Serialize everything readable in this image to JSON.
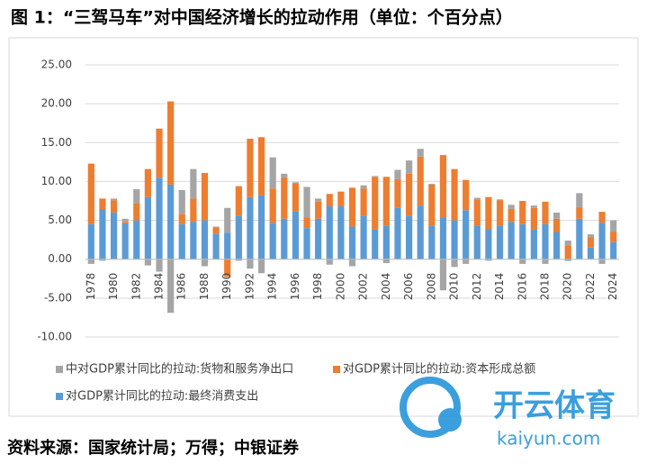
{
  "chart_data": {
    "type": "stacked_bar",
    "title": "图 1：“三驾马车”对中国经济增长的拉动作用（单位：个百分点）",
    "source": "资料来源：国家统计局；万得；中银证券",
    "watermark": [
      "开云体育",
      "kaiyun.com"
    ],
    "categories": [
      "1978",
      null,
      "1980",
      null,
      "1982",
      null,
      "1984",
      null,
      "1986",
      null,
      "1988",
      null,
      "1990",
      null,
      "1992",
      null,
      "1994",
      null,
      "1996",
      null,
      "1998",
      null,
      "2000",
      null,
      "2002",
      null,
      "2004",
      null,
      "2006",
      null,
      "2008",
      null,
      "2010",
      null,
      "2012",
      null,
      "2014",
      null,
      "2016",
      null,
      "2018",
      null,
      "2020",
      null,
      "2022",
      null,
      "2024"
    ],
    "series": [
      {
        "name": "中对GDP累计同比的拉动:货物和服务净出口",
        "color": "#a5a5a5",
        "values": [
          -0.6,
          -0.2,
          0.2,
          0.4,
          1.8,
          -0.8,
          -1.6,
          -6.9,
          3.1,
          3.8,
          -0.9,
          0.1,
          3.2,
          -0.2,
          -1.2,
          -1.8,
          4.0,
          0.5,
          0.2,
          3.9,
          0.4,
          -0.7,
          0.0,
          -0.9,
          0.4,
          0.1,
          -0.5,
          1.2,
          1.7,
          1.0,
          0.1,
          -4.0,
          -1.0,
          -0.6,
          0.2,
          -0.2,
          0.1,
          0.5,
          -0.6,
          0.3,
          -0.6,
          0.8,
          0.6,
          1.8,
          0.4,
          -0.6,
          1.5
        ]
      },
      {
        "name": "对GDP累计同比的拉动:资本形成总额",
        "color": "#ed7d31",
        "values": [
          7.8,
          1.4,
          1.6,
          0.2,
          2.2,
          3.6,
          6.3,
          10.7,
          1.3,
          3.0,
          6.1,
          0.8,
          -2.3,
          3.8,
          7.5,
          7.5,
          4.4,
          5.3,
          3.5,
          1.4,
          2.2,
          1.6,
          1.9,
          5.0,
          3.5,
          6.8,
          6.3,
          3.7,
          5.4,
          6.3,
          5.3,
          8.1,
          6.6,
          3.9,
          3.4,
          4.1,
          3.3,
          1.7,
          3.0,
          2.8,
          2.9,
          1.7,
          1.8,
          1.5,
          1.3,
          1.4,
          1.3
        ]
      },
      {
        "name": "对GDP累计同比的拉动:最终消费支出",
        "color": "#5b9bd5",
        "values": [
          4.5,
          6.4,
          6.0,
          4.6,
          5.0,
          8.0,
          10.5,
          9.6,
          4.5,
          4.8,
          5.0,
          3.3,
          3.4,
          5.6,
          8.0,
          8.2,
          4.7,
          5.2,
          6.2,
          4.0,
          5.2,
          6.8,
          6.8,
          4.2,
          5.6,
          3.8,
          4.3,
          6.6,
          5.6,
          6.9,
          4.3,
          5.3,
          5.0,
          6.3,
          4.3,
          3.9,
          4.3,
          4.8,
          4.5,
          3.8,
          4.5,
          3.5,
          -0.2,
          5.2,
          1.5,
          4.7,
          2.2
        ]
      }
    ],
    "ylim": [
      -10,
      25
    ],
    "yticks": [
      {
        "value": -10,
        "label": "-10.00"
      },
      {
        "value": -5,
        "label": "-5.00"
      },
      {
        "value": 0,
        "label": "0.00"
      },
      {
        "value": 5,
        "label": "5.00"
      },
      {
        "value": 10,
        "label": "10.00"
      },
      {
        "value": 15,
        "label": "15.00"
      },
      {
        "value": 20,
        "label": "20.00"
      },
      {
        "value": 25,
        "label": "25.00"
      }
    ],
    "grid": true
  }
}
